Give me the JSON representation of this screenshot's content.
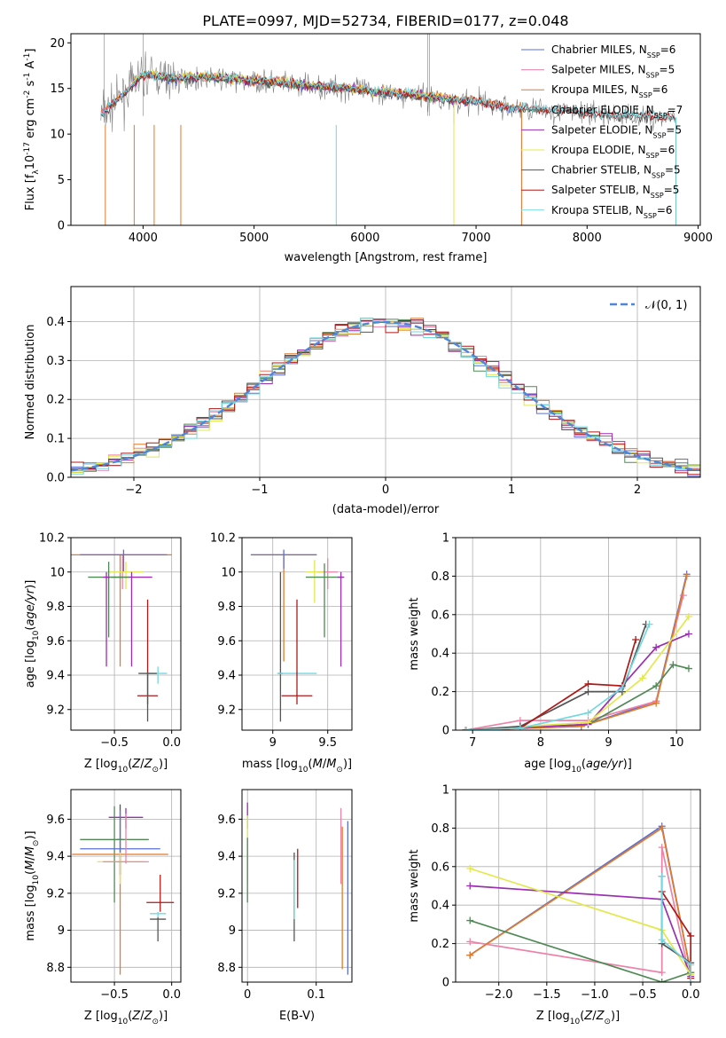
{
  "title": "PLATE=0997, MJD=52734, FIBERID=0177, z=0.048",
  "colors": {
    "chabrier_miles": "#5a6fd6",
    "salpeter_miles": "#ee82a8",
    "kroupa_miles": "#e07b2a",
    "chabrier_elodie": "#4f8a55",
    "salpeter_elodie": "#9a2fb0",
    "kroupa_elodie": "#e3e84a",
    "chabrier_stelib": "#555555",
    "salpeter_stelib": "#b01818",
    "kroupa_stelib": "#72d8e0",
    "normal_curve": "#4f86d8"
  },
  "chart_data": [
    {
      "id": "spectrum",
      "type": "line",
      "xlabel": "wavelength [Angstrom, rest frame]",
      "ylabel_parts": [
        "Flux [f",
        "λ",
        "10",
        "-17",
        " erg cm",
        "-2",
        " s",
        "-1",
        " A",
        "-1",
        "]"
      ],
      "xlim": [
        3350,
        9020
      ],
      "ylim": [
        0,
        21
      ],
      "xticks": [
        4000,
        5000,
        6000,
        7000,
        8000,
        9000
      ],
      "yticks": [
        0,
        5,
        10,
        15,
        20
      ],
      "legend": [
        {
          "label": "Chabrier MILES, N",
          "sub": "SSP",
          "suffix": "=6",
          "color": "#5a6fd6"
        },
        {
          "label": "Salpeter MILES, N",
          "sub": "SSP",
          "suffix": "=5",
          "color": "#ee82a8"
        },
        {
          "label": "Kroupa MILES, N",
          "sub": "SSP",
          "suffix": "=6",
          "color": "#e07b2a"
        },
        {
          "label": "Chabrier ELODIE, N",
          "sub": "SSP",
          "suffix": "=7",
          "color": "#4f8a55"
        },
        {
          "label": "Salpeter ELODIE, N",
          "sub": "SSP",
          "suffix": "=5",
          "color": "#9a2fb0"
        },
        {
          "label": "Kroupa ELODIE, N",
          "sub": "SSP",
          "suffix": "=6",
          "color": "#e3e84a"
        },
        {
          "label": "Chabrier STELIB, N",
          "sub": "SSP",
          "suffix": "=5",
          "color": "#555555"
        },
        {
          "label": "Salpeter STELIB, N",
          "sub": "SSP",
          "suffix": "=5",
          "color": "#b01818"
        },
        {
          "label": "Kroupa STELIB, N",
          "sub": "SSP",
          "suffix": "=6",
          "color": "#72d8e0"
        }
      ],
      "data_envelope": {
        "wavelength": [
          3620,
          3800,
          4000,
          4300,
          4600,
          4900,
          5200,
          5500,
          5800,
          6100,
          6400,
          6700,
          7000,
          7300,
          7600,
          7900,
          8200,
          8500,
          8800
        ],
        "flux": [
          12.0,
          14.0,
          16.5,
          16.0,
          16.2,
          15.8,
          15.6,
          15.2,
          15.0,
          14.6,
          14.3,
          13.8,
          13.5,
          12.8,
          12.6,
          12.4,
          12.0,
          11.9,
          11.8
        ]
      },
      "observed_range": [
        3620,
        8800
      ],
      "model_ranges": {
        "miles": [
          3620,
          7410
        ],
        "elodie": [
          3900,
          6800
        ],
        "stelib": [
          3620,
          8800
        ]
      }
    },
    {
      "id": "residuals",
      "type": "step",
      "xlabel": "(data-model)/error",
      "ylabel": "Normed distribution",
      "xlim": [
        -2.5,
        2.5
      ],
      "ylim": [
        0,
        0.49
      ],
      "xticks": [
        -2,
        -1,
        0,
        1,
        2
      ],
      "xtick_labels": [
        "−2",
        "−1",
        "0",
        "1",
        "2"
      ],
      "yticks": [
        0.0,
        0.1,
        0.2,
        0.3,
        0.4
      ],
      "ytick_labels": [
        "0.0",
        "0.1",
        "0.2",
        "0.3",
        "0.4"
      ],
      "bin_width": 0.1,
      "normal_curve": {
        "mu": 0,
        "sigma": 1
      },
      "legend_label": "𝒩(0, 1)"
    },
    {
      "id": "age_vs_Z",
      "type": "errorbar",
      "xlabel": "Z [log10(Z/Z⊙)]",
      "ylabel": "age  [log10(age/yr)]",
      "xlim": [
        -0.88,
        0.08
      ],
      "ylim": [
        9.08,
        10.2
      ],
      "xticks": [
        -0.5,
        0.0
      ],
      "xtick_labels": [
        "−0.5",
        "0.0"
      ],
      "yticks": [
        9.2,
        9.4,
        9.6,
        9.8,
        10.0,
        10.2
      ],
      "points": [
        {
          "model": "kroupa_miles",
          "x": -0.45,
          "xerr": 0.45,
          "y": 10.1,
          "ylo": 9.45,
          "yhi": 10.1
        },
        {
          "model": "salpeter_miles",
          "x": -0.43,
          "xerr": 0.37,
          "y": 10.1,
          "ylo": 9.9,
          "yhi": 10.1
        },
        {
          "model": "chabrier_miles",
          "x": -0.42,
          "xerr": 0.38,
          "y": 10.1,
          "ylo": 10.0,
          "yhi": 10.13
        },
        {
          "model": "kroupa_elodie",
          "x": -0.4,
          "xerr": 0.15,
          "y": 10.0,
          "ylo": 9.9,
          "yhi": 10.06
        },
        {
          "model": "salpeter_elodie",
          "x": -0.35,
          "xerr": 0.18,
          "y": 9.97,
          "ylo": 9.45,
          "yhi": 10.0
        },
        {
          "model": "chabrier_elodie",
          "x": -0.55,
          "xerr": 0.18,
          "y": 9.97,
          "ylo": 9.62,
          "yhi": 10.06
        },
        {
          "model": "salpeter_stelib",
          "x": -0.21,
          "xerr": 0.09,
          "y": 9.28,
          "ylo": 9.23,
          "yhi": 9.84
        },
        {
          "model": "kroupa_stelib",
          "x": -0.12,
          "xerr": 0.08,
          "y": 9.41,
          "ylo": 9.35,
          "yhi": 9.45
        },
        {
          "model": "chabrier_stelib",
          "x": -0.21,
          "xerr": 0.08,
          "y": 9.41,
          "ylo": 9.13,
          "yhi": 9.42
        },
        {
          "model": "salpeter_elodie",
          "x": -0.57,
          "xerr": 0.03,
          "y": 9.97,
          "ylo": 9.45,
          "yhi": 10.0
        }
      ]
    },
    {
      "id": "age_vs_mass",
      "type": "errorbar",
      "xlabel": "mass [log10(M/M⊙)]",
      "ylabel": "",
      "xlim": [
        8.72,
        9.72
      ],
      "ylim": [
        9.08,
        10.2
      ],
      "xticks": [
        9.0,
        9.5
      ],
      "yticks": [
        9.2,
        9.4,
        9.6,
        9.8,
        10.0,
        10.2
      ],
      "points": [
        {
          "model": "kroupa_miles",
          "x": 9.1,
          "xerr": 0.3,
          "y": 10.1,
          "ylo": 9.48,
          "yhi": 10.1
        },
        {
          "model": "chabrier_miles",
          "x": 9.1,
          "xerr": 0.3,
          "y": 10.1,
          "ylo": 10.02,
          "yhi": 10.13
        },
        {
          "model": "salpeter_miles",
          "x": 9.5,
          "xerr": 0.09,
          "y": 10.0,
          "ylo": 9.9,
          "yhi": 10.08
        },
        {
          "model": "kroupa_elodie",
          "x": 9.38,
          "xerr": 0.08,
          "y": 10.0,
          "ylo": 9.82,
          "yhi": 10.07
        },
        {
          "model": "chabrier_elodie",
          "x": 9.47,
          "xerr": 0.17,
          "y": 9.97,
          "ylo": 9.62,
          "yhi": 10.05
        },
        {
          "model": "salpeter_elodie",
          "x": 9.62,
          "xerr": 0.03,
          "y": 9.97,
          "ylo": 9.45,
          "yhi": 10.0
        },
        {
          "model": "chabrier_stelib",
          "x": 9.07,
          "xerr": 0.02,
          "y": 9.41,
          "ylo": 9.13,
          "yhi": 10.0
        },
        {
          "model": "kroupa_stelib",
          "x": 9.22,
          "xerr": 0.18,
          "y": 9.41,
          "ylo": 9.4,
          "yhi": 9.42
        },
        {
          "model": "salpeter_stelib",
          "x": 9.22,
          "xerr": 0.14,
          "y": 9.28,
          "ylo": 9.23,
          "yhi": 9.84
        }
      ]
    },
    {
      "id": "massweight_vs_age",
      "type": "line",
      "xlabel": "age  [log10(age/yr)]",
      "ylabel": "mass weight",
      "xlim": [
        6.75,
        10.35
      ],
      "ylim": [
        0,
        1.0
      ],
      "xticks": [
        7,
        8,
        9,
        10
      ],
      "yticks": [
        0.0,
        0.2,
        0.4,
        0.6,
        0.8,
        1.0
      ],
      "series": [
        {
          "model": "chabrier_miles",
          "x": [
            6.9,
            8.6,
            9.7,
            10.15
          ],
          "y": [
            0.0,
            0.02,
            0.15,
            0.81
          ]
        },
        {
          "model": "salpeter_miles",
          "x": [
            6.9,
            7.7,
            8.7,
            9.7,
            10.1
          ],
          "y": [
            0.0,
            0.05,
            0.05,
            0.15,
            0.7
          ]
        },
        {
          "model": "kroupa_miles",
          "x": [
            6.9,
            8.6,
            9.7,
            10.15
          ],
          "y": [
            0.0,
            0.02,
            0.14,
            0.8
          ]
        },
        {
          "model": "chabrier_elodie",
          "x": [
            6.9,
            8.7,
            9.7,
            9.95,
            10.18
          ],
          "y": [
            0.0,
            0.03,
            0.23,
            0.34,
            0.32
          ]
        },
        {
          "model": "salpeter_elodie",
          "x": [
            6.9,
            8.7,
            9.7,
            10.18
          ],
          "y": [
            0.0,
            0.03,
            0.43,
            0.5
          ]
        },
        {
          "model": "kroupa_elodie",
          "x": [
            6.9,
            8.7,
            9.5,
            10.18
          ],
          "y": [
            0.0,
            0.04,
            0.27,
            0.59
          ]
        },
        {
          "model": "chabrier_stelib",
          "x": [
            6.9,
            7.7,
            8.7,
            9.2,
            9.55
          ],
          "y": [
            0.0,
            0.02,
            0.2,
            0.2,
            0.55
          ]
        },
        {
          "model": "salpeter_stelib",
          "x": [
            6.9,
            7.7,
            8.7,
            9.2,
            9.4
          ],
          "y": [
            0.0,
            0.01,
            0.24,
            0.23,
            0.47
          ]
        },
        {
          "model": "kroupa_stelib",
          "x": [
            6.9,
            7.7,
            8.7,
            9.2,
            9.6
          ],
          "y": [
            0.0,
            0.01,
            0.09,
            0.22,
            0.55
          ]
        }
      ]
    },
    {
      "id": "mass_vs_Z",
      "type": "errorbar",
      "xlabel": "Z [log10(Z/Z⊙)]",
      "ylabel": "mass [log10(M/M⊙)]",
      "xlim": [
        -0.88,
        0.08
      ],
      "ylim": [
        8.72,
        9.76
      ],
      "xticks": [
        -0.5,
        0.0
      ],
      "xtick_labels": [
        "−0.5",
        "0.0"
      ],
      "yticks": [
        8.8,
        9.0,
        9.2,
        9.4,
        9.6
      ],
      "points": [
        {
          "model": "salpeter_elodie",
          "x": -0.4,
          "xerr": 0.15,
          "y": 9.61,
          "ylo": 9.55,
          "yhi": 9.66
        },
        {
          "model": "chabrier_stelib",
          "x": -0.45,
          "xerr": 0.03,
          "y": 9.49,
          "ylo": 9.3,
          "yhi": 9.68
        },
        {
          "model": "chabrier_elodie",
          "x": -0.5,
          "xerr": 0.3,
          "y": 9.49,
          "ylo": 9.15,
          "yhi": 9.67
        },
        {
          "model": "chabrier_miles",
          "x": -0.45,
          "xerr": 0.35,
          "y": 9.44,
          "ylo": 9.3,
          "yhi": 9.65
        },
        {
          "model": "kroupa_miles",
          "x": -0.45,
          "xerr": 0.42,
          "y": 9.41,
          "ylo": 8.76,
          "yhi": 9.42
        },
        {
          "model": "kroupa_elodie",
          "x": -0.45,
          "xerr": 0.2,
          "y": 9.37,
          "ylo": 9.25,
          "yhi": 9.42
        },
        {
          "model": "salpeter_miles",
          "x": -0.4,
          "xerr": 0.2,
          "y": 9.37,
          "ylo": 9.36,
          "yhi": 9.63
        },
        {
          "model": "salpeter_stelib",
          "x": -0.1,
          "xerr": 0.12,
          "y": 9.15,
          "ylo": 9.1,
          "yhi": 9.3
        },
        {
          "model": "kroupa_stelib",
          "x": -0.12,
          "xerr": 0.07,
          "y": 9.09,
          "ylo": 9.07,
          "yhi": 9.1
        },
        {
          "model": "chabrier_stelib",
          "x": -0.12,
          "xerr": 0.07,
          "y": 9.06,
          "ylo": 8.94,
          "yhi": 9.07
        }
      ]
    },
    {
      "id": "mass_vs_ebv",
      "type": "errorbar",
      "xlabel": "E(B-V)",
      "ylabel": "",
      "xlim": [
        -0.008,
        0.152
      ],
      "ylim": [
        8.72,
        9.76
      ],
      "xticks": [
        0.0,
        0.1
      ],
      "yticks": [
        8.8,
        9.0,
        9.2,
        9.4,
        9.6
      ],
      "points": [
        {
          "model": "salpeter_elodie",
          "x": 0.0,
          "ylo": 9.55,
          "yhi": 9.69
        },
        {
          "model": "kroupa_elodie",
          "x": 0.0,
          "ylo": 9.25,
          "yhi": 9.62
        },
        {
          "model": "chabrier_elodie",
          "x": 0.0,
          "ylo": 9.15,
          "yhi": 9.5
        },
        {
          "model": "chabrier_stelib",
          "x": 0.068,
          "ylo": 8.94,
          "yhi": 9.42
        },
        {
          "model": "kroupa_stelib",
          "x": 0.068,
          "ylo": 9.06,
          "yhi": 9.38
        },
        {
          "model": "salpeter_stelib",
          "x": 0.073,
          "ylo": 9.12,
          "yhi": 9.44
        },
        {
          "model": "salpeter_miles",
          "x": 0.136,
          "ylo": 9.25,
          "yhi": 9.66
        },
        {
          "model": "kroupa_miles",
          "x": 0.138,
          "ylo": 8.79,
          "yhi": 9.56
        },
        {
          "model": "chabrier_miles",
          "x": 0.146,
          "ylo": 8.76,
          "yhi": 9.59
        }
      ]
    },
    {
      "id": "massweight_vs_Z",
      "type": "line",
      "xlabel": "Z [log10(Z/Z⊙)]",
      "ylabel": "mass weight",
      "xlim": [
        -2.45,
        0.1
      ],
      "ylim": [
        0,
        1.0
      ],
      "xticks": [
        -2.0,
        -1.5,
        -1.0,
        -0.5,
        0.0
      ],
      "xtick_labels": [
        "−2.0",
        "−1.5",
        "−1.0",
        "−0.5",
        "0.0"
      ],
      "yticks": [
        0.0,
        0.2,
        0.4,
        0.6,
        0.8,
        1.0
      ],
      "series": [
        {
          "model": "chabrier_miles",
          "x": [
            -2.3,
            -0.3,
            0.0
          ],
          "y": [
            0.14,
            0.81,
            0.05
          ]
        },
        {
          "model": "salpeter_miles",
          "x": [
            -2.3,
            -0.3,
            -0.3,
            0.0
          ],
          "y": [
            0.21,
            0.05,
            0.7,
            0.0
          ]
        },
        {
          "model": "kroupa_miles",
          "x": [
            -2.3,
            -0.3,
            0.0
          ],
          "y": [
            0.14,
            0.8,
            0.05
          ]
        },
        {
          "model": "chabrier_elodie",
          "x": [
            -2.3,
            -0.3,
            0.0
          ],
          "y": [
            0.32,
            0.0,
            0.05
          ]
        },
        {
          "model": "salpeter_elodie",
          "x": [
            -2.3,
            -0.3,
            0.0
          ],
          "y": [
            0.5,
            0.43,
            0.03
          ]
        },
        {
          "model": "kroupa_elodie",
          "x": [
            -2.3,
            -0.3,
            0.0
          ],
          "y": [
            0.59,
            0.27,
            0.04
          ]
        },
        {
          "model": "chabrier_stelib",
          "x": [
            -0.3,
            -0.3,
            0.0
          ],
          "y": [
            0.55,
            0.2,
            0.1
          ]
        },
        {
          "model": "salpeter_stelib",
          "x": [
            -0.3,
            0.0,
            0.0
          ],
          "y": [
            0.47,
            0.24,
            0.02
          ]
        },
        {
          "model": "kroupa_stelib",
          "x": [
            -0.3,
            -0.3,
            0.0,
            0.0
          ],
          "y": [
            0.55,
            0.22,
            0.09,
            0.0
          ]
        }
      ]
    }
  ]
}
